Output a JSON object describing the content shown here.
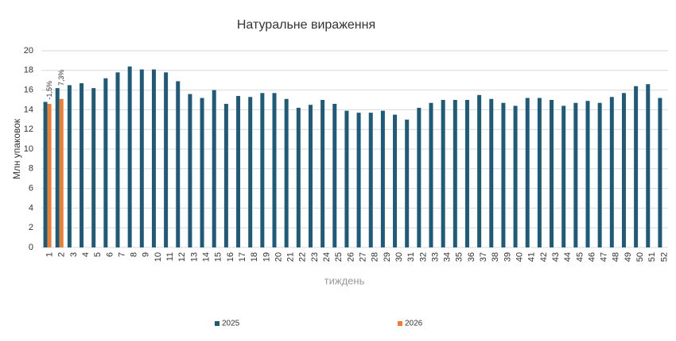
{
  "chart_data": {
    "type": "bar",
    "title": "Натуральне вираження",
    "x_label": "тиждень",
    "y_label": "Млн упаковок",
    "categories": [
      "1",
      "2",
      "3",
      "4",
      "5",
      "6",
      "7",
      "8",
      "9",
      "10",
      "11",
      "12",
      "13",
      "14",
      "15",
      "16",
      "17",
      "18",
      "19",
      "20",
      "21",
      "22",
      "23",
      "24",
      "25",
      "26",
      "27",
      "28",
      "29",
      "30",
      "31",
      "32",
      "33",
      "34",
      "35",
      "36",
      "37",
      "38",
      "39",
      "40",
      "41",
      "42",
      "43",
      "44",
      "45",
      "46",
      "47",
      "48",
      "49",
      "50",
      "51",
      "52"
    ],
    "series": [
      {
        "name": "2025",
        "color": "#1d5b79",
        "values": [
          14.8,
          16.2,
          16.5,
          16.7,
          16.2,
          17.2,
          17.8,
          18.4,
          18.1,
          18.1,
          17.8,
          16.9,
          15.6,
          15.2,
          16.0,
          14.6,
          15.4,
          15.3,
          15.7,
          15.7,
          15.1,
          14.2,
          14.5,
          15.0,
          14.6,
          13.9,
          13.7,
          13.7,
          13.9,
          13.5,
          13.0,
          14.2,
          14.7,
          15.0,
          15.0,
          15.0,
          15.5,
          15.1,
          14.7,
          14.4,
          15.2,
          15.2,
          15.0,
          14.4,
          14.7,
          14.9,
          14.7,
          15.3,
          15.7,
          16.4,
          16.6,
          15.2
        ]
      },
      {
        "name": "2026",
        "color": "#ed7d31",
        "values": [
          14.6,
          15.1,
          null,
          null,
          null,
          null,
          null,
          null,
          null,
          null,
          null,
          null,
          null,
          null,
          null,
          null,
          null,
          null,
          null,
          null,
          null,
          null,
          null,
          null,
          null,
          null,
          null,
          null,
          null,
          null,
          null,
          null,
          null,
          null,
          null,
          null,
          null,
          null,
          null,
          null,
          null,
          null,
          null,
          null,
          null,
          null,
          null,
          null,
          null,
          null,
          null,
          null
        ]
      }
    ],
    "annotations": [
      "-1,5%",
      "7,3%"
    ],
    "ylim": [
      0,
      20
    ],
    "yticks": [
      0,
      2,
      4,
      6,
      8,
      10,
      12,
      14,
      16,
      18,
      20
    ],
    "grid": true,
    "legend": "bottom"
  }
}
